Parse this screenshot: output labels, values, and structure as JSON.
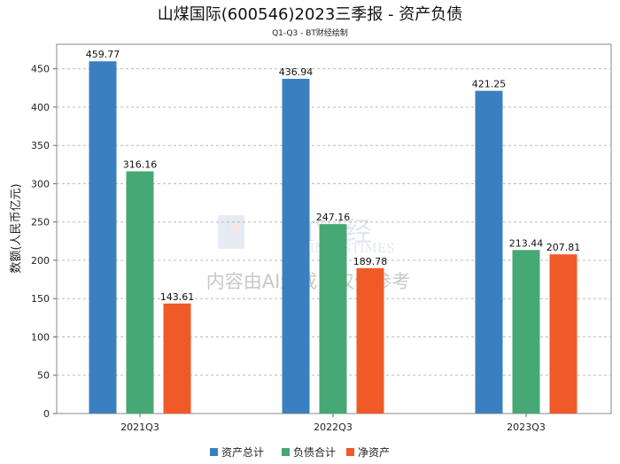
{
  "chart_data": {
    "type": "bar",
    "title": "山煤国际(600546)2023三季报 - 资产负债",
    "subtitle": "Q1-Q3 - BT财经绘制",
    "ylabel": "数额(人民币亿元)",
    "xlabel": "",
    "categories": [
      "2021Q3",
      "2022Q3",
      "2023Q3"
    ],
    "series": [
      {
        "name": "资产总计",
        "color": "#3a80c0",
        "values": [
          459.77,
          436.94,
          421.25
        ]
      },
      {
        "name": "负债合计",
        "color": "#46a874",
        "values": [
          316.16,
          247.16,
          213.44
        ]
      },
      {
        "name": "净资产",
        "color": "#f05a28",
        "values": [
          143.61,
          189.78,
          207.81
        ]
      }
    ],
    "ylim": [
      0,
      482
    ],
    "yticks": [
      0,
      50,
      100,
      150,
      200,
      250,
      300,
      350,
      400,
      450
    ],
    "grid": true,
    "legend": "bottom"
  },
  "watermark": {
    "logo": "BT财经 BUSINESSTIMES",
    "text": "内容由AI生成，仅供参考"
  }
}
